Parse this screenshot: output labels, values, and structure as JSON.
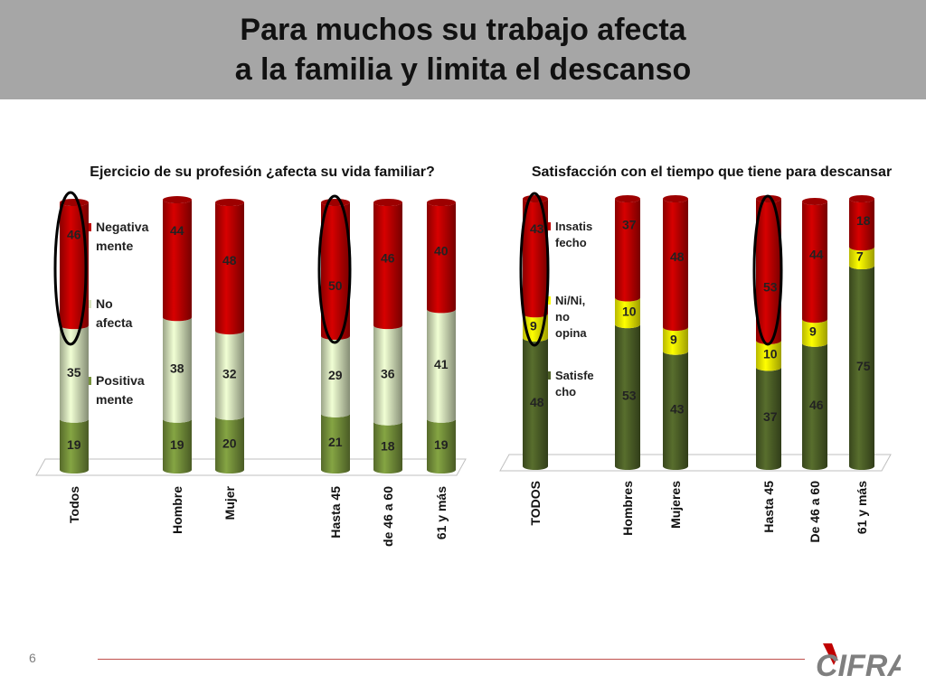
{
  "slide": {
    "title_line1": "Para muchos su trabajo afecta",
    "title_line2": "a la familia y limita el descanso",
    "slide_number": "6",
    "logo_text": "CIFRA"
  },
  "chart_data": [
    {
      "type": "bar",
      "stacked": true,
      "title": "Ejercicio de su profesión ¿afecta su vida familiar?",
      "categories": [
        "Todos",
        "Hombre",
        "Mujer",
        "Hasta 45",
        "de 46 a 60",
        "61 y más"
      ],
      "series": [
        {
          "name": "Positiva mente",
          "legend_lines": [
            "Positiva",
            "mente"
          ],
          "color": "#77933c",
          "values": [
            19,
            19,
            20,
            21,
            18,
            19
          ]
        },
        {
          "name": "No afecta",
          "legend_lines": [
            "No",
            "afecta"
          ],
          "color": "#d7e4bd",
          "values": [
            35,
            38,
            32,
            29,
            36,
            41
          ]
        },
        {
          "name": "Negativa mente",
          "legend_lines": [
            "Negativa",
            "mente"
          ],
          "color": "#c00000",
          "values": [
            46,
            44,
            48,
            50,
            46,
            40
          ]
        }
      ],
      "ylim": [
        0,
        100
      ],
      "highlighted": [
        "Todos",
        "Hasta 45"
      ]
    },
    {
      "type": "bar",
      "stacked": true,
      "title": "Satisfacción con el tiempo que tiene para descansar",
      "categories": [
        "TODOS",
        "Hombres",
        "Mujeres",
        "Hasta 45",
        "De 46 a 60",
        "61 y más"
      ],
      "series": [
        {
          "name": "Satisfe cho",
          "legend_lines": [
            "Satisfe",
            "cho"
          ],
          "color": "#4f6228",
          "values": [
            48,
            53,
            43,
            37,
            46,
            75
          ]
        },
        {
          "name": "Ni/Ni, no opina",
          "legend_lines": [
            "Ni/Ni,",
            "no",
            "opina"
          ],
          "color": "#ffff00",
          "values": [
            9,
            10,
            9,
            10,
            9,
            7
          ]
        },
        {
          "name": "Insatis fecho",
          "legend_lines": [
            "Insatis",
            "fecho"
          ],
          "color": "#c00000",
          "values": [
            43,
            37,
            48,
            53,
            44,
            18
          ]
        }
      ],
      "ylim": [
        0,
        100
      ],
      "highlighted": [
        "TODOS",
        "Hasta 45"
      ]
    }
  ]
}
